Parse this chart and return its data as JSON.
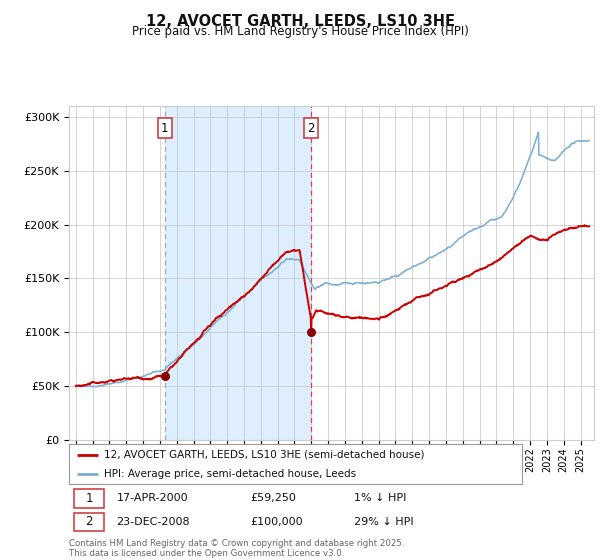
{
  "title": "12, AVOCET GARTH, LEEDS, LS10 3HE",
  "subtitle": "Price paid vs. HM Land Registry's House Price Index (HPI)",
  "ylim": [
    0,
    310000
  ],
  "yticks": [
    0,
    50000,
    100000,
    150000,
    200000,
    250000,
    300000
  ],
  "ytick_labels": [
    "£0",
    "£50K",
    "£100K",
    "£150K",
    "£200K",
    "£250K",
    "£300K"
  ],
  "sale1_date_num": 2000.29,
  "sale1_price": 59250,
  "sale2_date_num": 2008.98,
  "sale2_price": 100000,
  "shade_color": "#ddeeff",
  "hpi_color": "#7aadd4",
  "price_color": "#cc0000",
  "marker_color": "#880000",
  "vline1_color": "#aaaaaa",
  "vline2_color": "#dd4444",
  "background_color": "#ffffff",
  "grid_color": "#cccccc",
  "legend_line1_label": "12, AVOCET GARTH, LEEDS, LS10 3HE (semi-detached house)",
  "legend_line2_label": "HPI: Average price, semi-detached house, Leeds",
  "footnote": "Contains HM Land Registry data © Crown copyright and database right 2025.\nThis data is licensed under the Open Government Licence v3.0."
}
